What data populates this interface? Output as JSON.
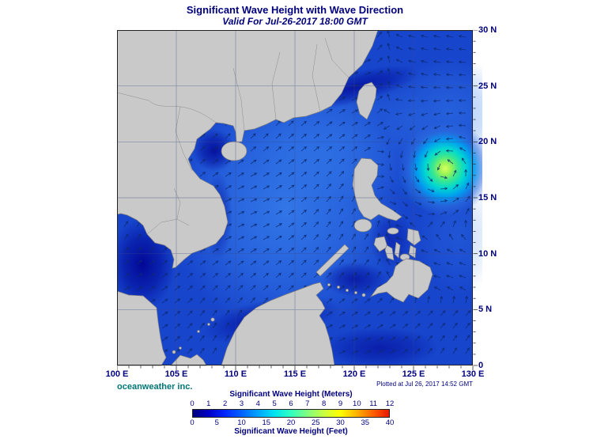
{
  "header": {
    "title": "Significant Wave Height with Wave Direction",
    "subtitle": "Valid For Jul-26-2017 18:00 GMT"
  },
  "map": {
    "x_axis_labels": [
      "100 E",
      "105 E",
      "110 E",
      "115 E",
      "120 E",
      "125 E",
      "130 E"
    ],
    "y_axis_labels": [
      "0",
      "5 N",
      "10 N",
      "15 N",
      "20 N",
      "25 N",
      "30 N"
    ],
    "lon_range": [
      100,
      130
    ],
    "lat_range": [
      0,
      30
    ],
    "grid_interval_deg": 5,
    "storm": {
      "lon": 127.7,
      "lat": 17.6,
      "approx_peak_m": 6
    }
  },
  "footer": {
    "credit": "oceanweather inc.",
    "plotted": "Plotted at Jul 26, 2017 14:52 GMT"
  },
  "legend": {
    "meters_label": "Significant Wave Height (Meters)",
    "feet_label": "Significant Wave Height (Feet)",
    "meters_ticks": [
      "0",
      "1",
      "2",
      "3",
      "4",
      "5",
      "6",
      "7",
      "8",
      "9",
      "10",
      "11",
      "12"
    ],
    "feet_ticks": [
      "0",
      "5",
      "10",
      "15",
      "20",
      "25",
      "30",
      "35",
      "40"
    ],
    "gradient_colors": [
      "#000080",
      "#0000c8",
      "#0028ff",
      "#0064ff",
      "#00a4ff",
      "#00e4f0",
      "#30ffc0",
      "#80ff80",
      "#c8ff40",
      "#ffff00",
      "#ffb400",
      "#ff6000",
      "#e81800"
    ]
  },
  "colors": {
    "title_color": "#00007d",
    "axis_color": "#00007d",
    "credit_color": "#007575",
    "plotted_color": "#00007d",
    "land": "#c9c9c9",
    "land_border": "#7d7d7d",
    "ocean_base": "#1745cc",
    "arrow_color": "#0d2a6e",
    "grid_color": "#3a4a85"
  }
}
